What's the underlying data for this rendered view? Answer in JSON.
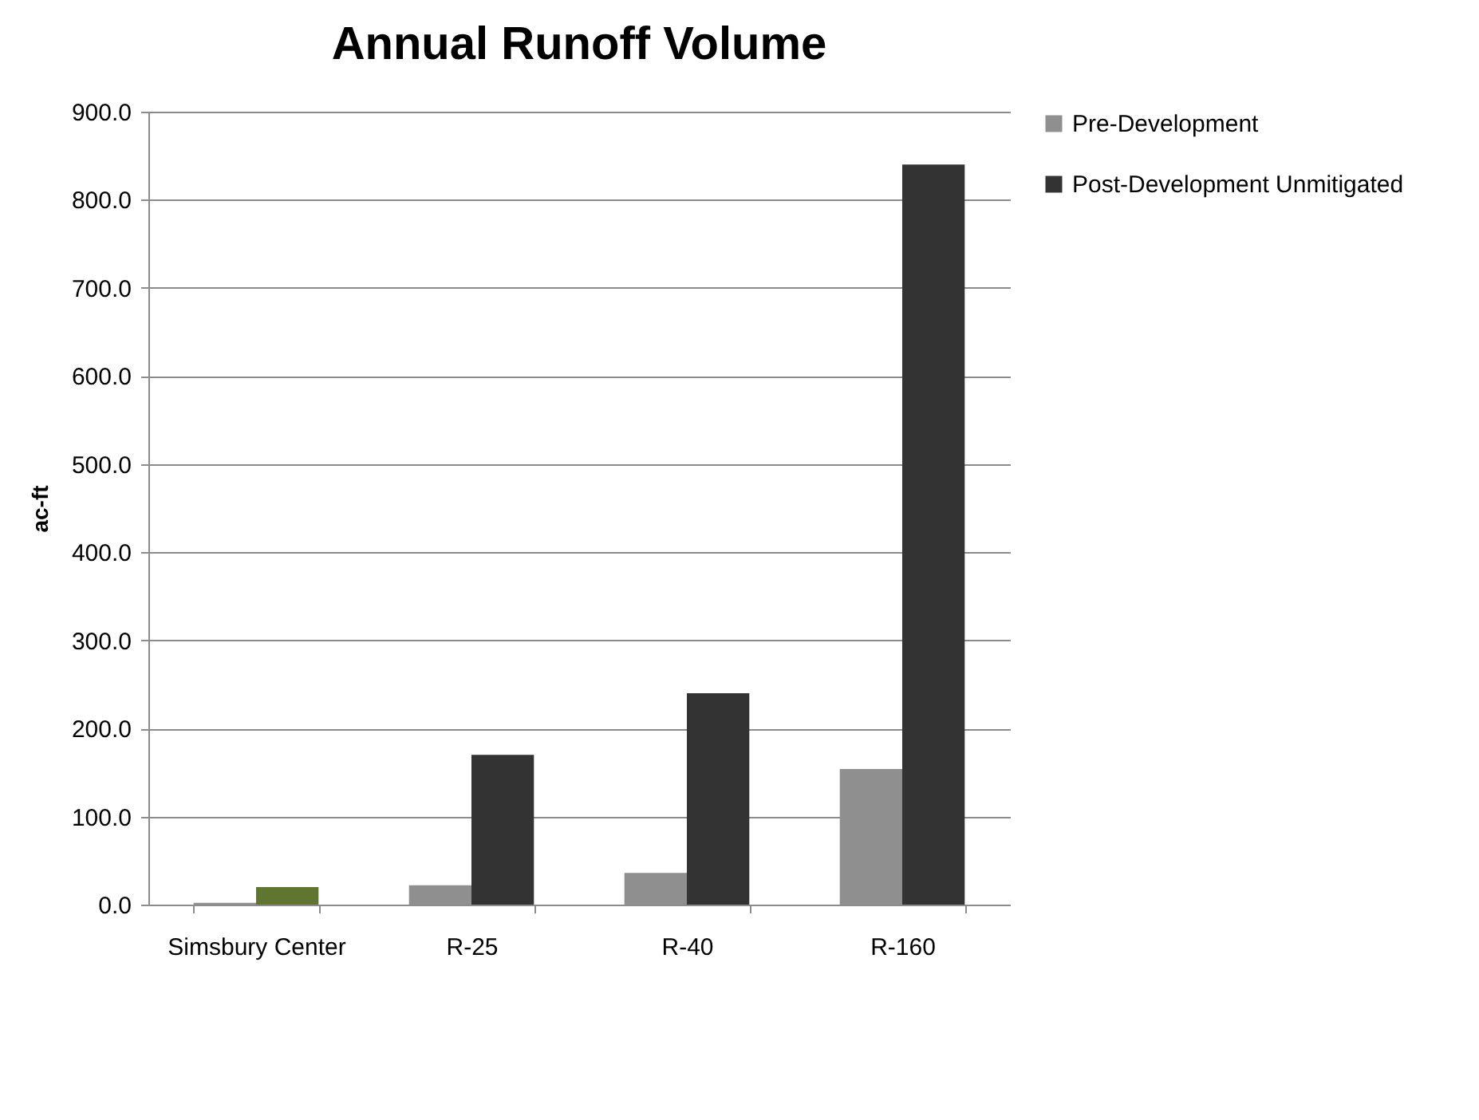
{
  "chart_data": {
    "type": "bar",
    "title": "Annual Runoff Volume",
    "ylabel": "ac-ft",
    "categories": [
      "Simsbury Center",
      "R-25",
      "R-40",
      "R-160"
    ],
    "series": [
      {
        "name": "Pre-Development",
        "color": "#8f8f8f",
        "values": [
          2,
          22,
          36,
          154
        ]
      },
      {
        "name": "Post-Development Unmitigated",
        "color": "#333333",
        "colors": [
          "#5f7530",
          "#333333",
          "#333333",
          "#333333"
        ],
        "values": [
          20,
          170,
          240,
          840
        ]
      }
    ],
    "ylim": [
      0,
      900
    ],
    "yticks": [
      {
        "value": 0,
        "label": "0.0"
      },
      {
        "value": 100,
        "label": "100.0"
      },
      {
        "value": 200,
        "label": "200.0"
      },
      {
        "value": 300,
        "label": "300.0"
      },
      {
        "value": 400,
        "label": "400.0"
      },
      {
        "value": 500,
        "label": "500.0"
      },
      {
        "value": 600,
        "label": "600.0"
      },
      {
        "value": 700,
        "label": "700.0"
      },
      {
        "value": 800,
        "label": "800.0"
      },
      {
        "value": 900,
        "label": "900.0"
      }
    ],
    "grid": "y",
    "legend": "right"
  }
}
